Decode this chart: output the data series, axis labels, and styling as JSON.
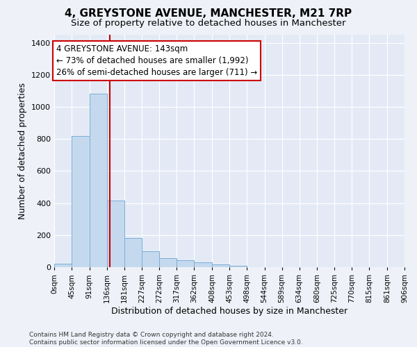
{
  "title_line1": "4, GREYSTONE AVENUE, MANCHESTER, M21 7RP",
  "title_line2": "Size of property relative to detached houses in Manchester",
  "xlabel": "Distribution of detached houses by size in Manchester",
  "ylabel": "Number of detached properties",
  "bin_edges": [
    0,
    45,
    91,
    136,
    181,
    227,
    272,
    317,
    362,
    408,
    453,
    498,
    544,
    589,
    634,
    680,
    725,
    770,
    815,
    861,
    906
  ],
  "bar_heights": [
    20,
    820,
    1080,
    415,
    180,
    100,
    55,
    45,
    30,
    18,
    8,
    2,
    1,
    0,
    0,
    0,
    0,
    0,
    0,
    0
  ],
  "bar_color": "#c5d9ee",
  "bar_edge_color": "#7aaed6",
  "property_size": 143,
  "vline_color": "#cc0000",
  "annotation_text": "4 GREYSTONE AVENUE: 143sqm\n← 73% of detached houses are smaller (1,992)\n26% of semi-detached houses are larger (711) →",
  "annotation_box_color": "#ffffff",
  "annotation_box_edge_color": "#cc0000",
  "ylim": [
    0,
    1450
  ],
  "yticks": [
    0,
    200,
    400,
    600,
    800,
    1000,
    1200,
    1400
  ],
  "footer_text": "Contains HM Land Registry data © Crown copyright and database right 2024.\nContains public sector information licensed under the Open Government Licence v3.0.",
  "background_color": "#eef2f8",
  "plot_bg_color": "#e4eaf5",
  "grid_color": "#ffffff",
  "title_fontsize": 11,
  "subtitle_fontsize": 9.5,
  "tick_label_fontsize": 7.5,
  "axis_label_fontsize": 9,
  "annotation_fontsize": 8.5
}
